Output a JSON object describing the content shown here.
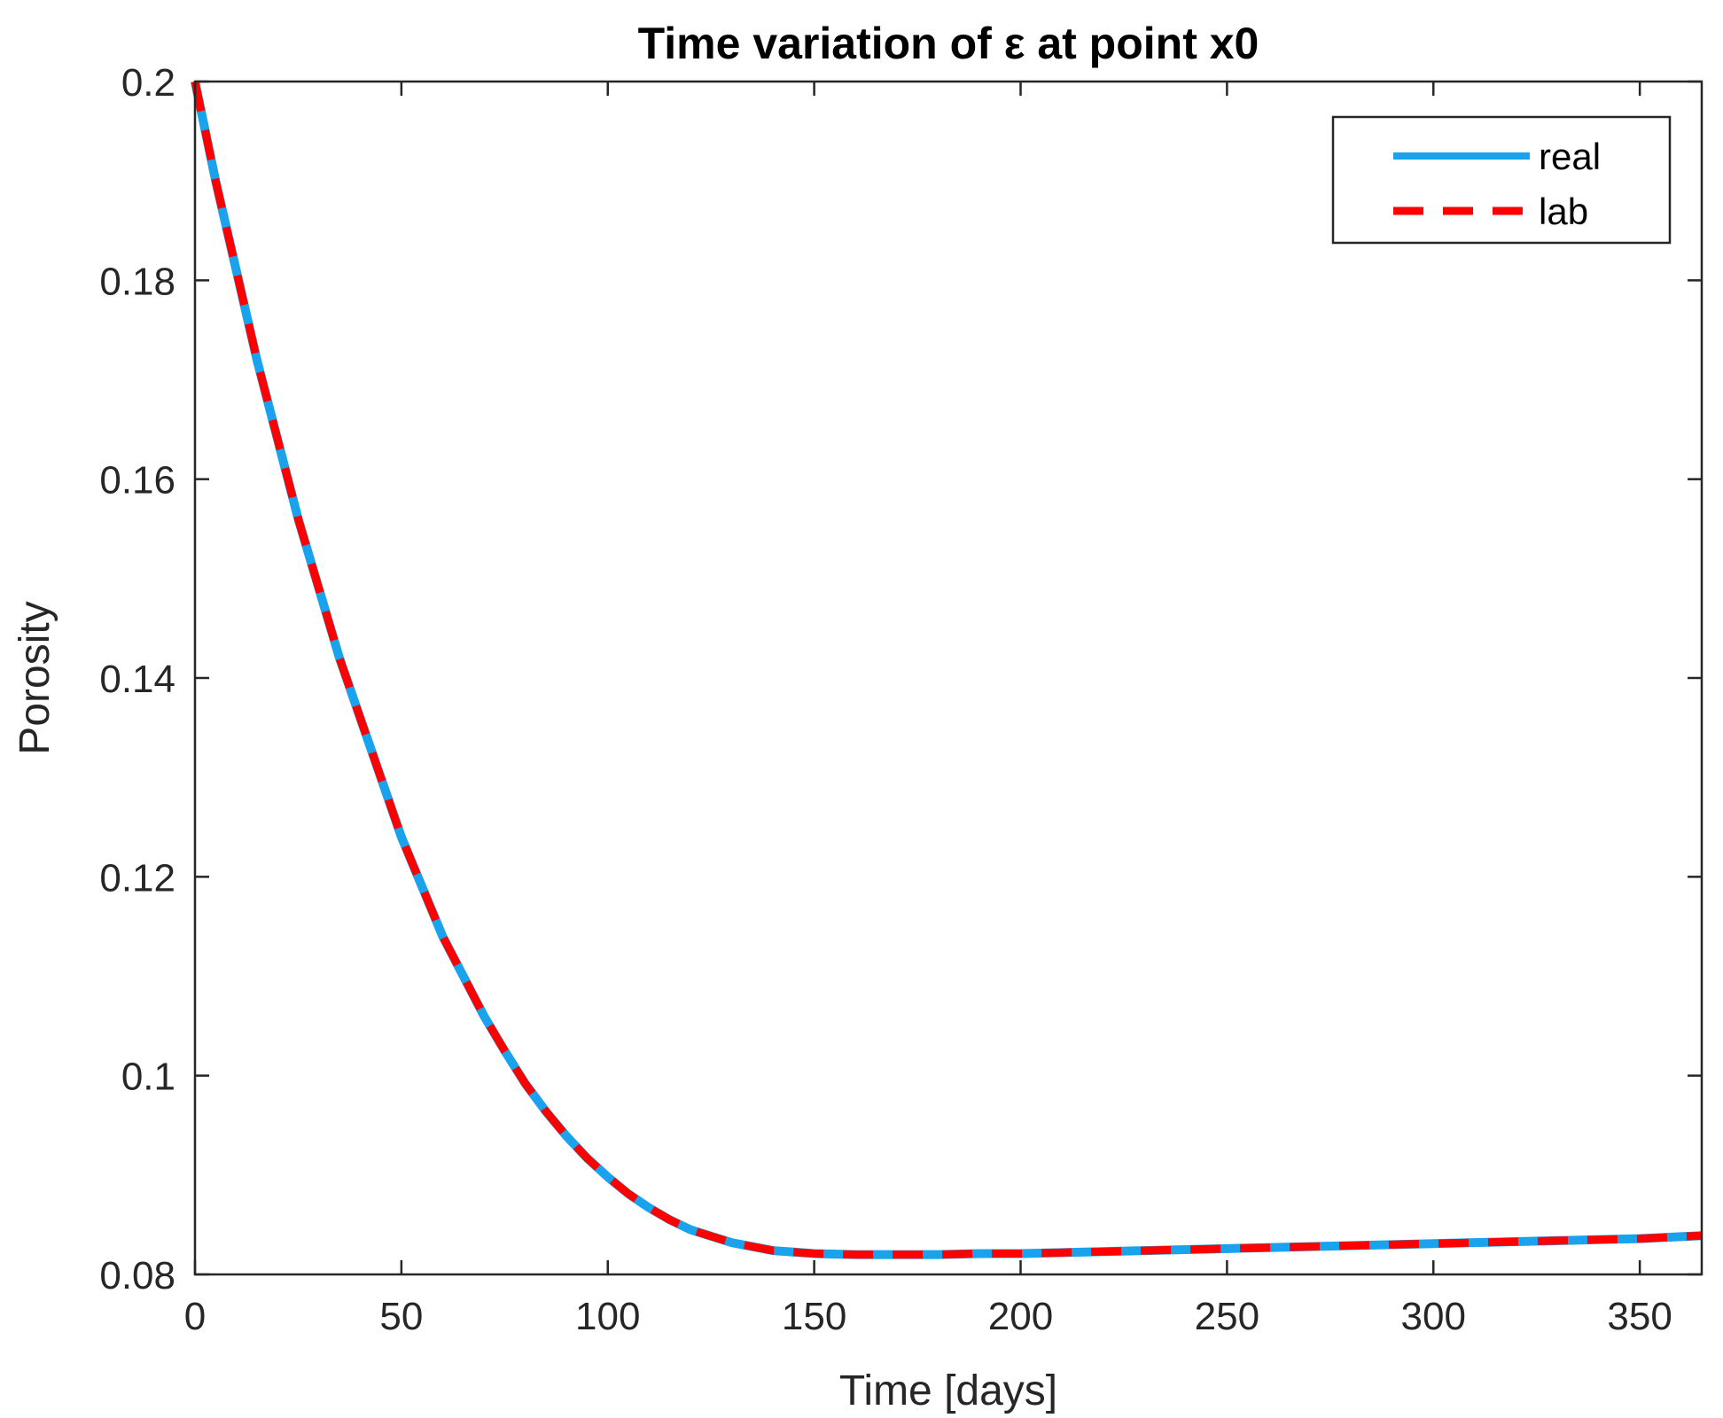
{
  "chart_data": {
    "type": "line",
    "title": "Time variation of ε at point x0",
    "xlabel": "Time [days]",
    "ylabel": "Porosity",
    "xlim": [
      0,
      365
    ],
    "ylim": [
      0.08,
      0.2
    ],
    "xticks": [
      0,
      50,
      100,
      150,
      200,
      250,
      300,
      350
    ],
    "xtick_labels": [
      "0",
      "50",
      "100",
      "150",
      "200",
      "250",
      "300",
      "350"
    ],
    "yticks": [
      0.08,
      0.1,
      0.12,
      0.14,
      0.16,
      0.18,
      0.2
    ],
    "ytick_labels": [
      "0.08",
      "0.1",
      "0.12",
      "0.14",
      "0.16",
      "0.18",
      "0.2"
    ],
    "grid": false,
    "legend_position": "top-right",
    "x": [
      0,
      5,
      10,
      15,
      20,
      25,
      30,
      35,
      40,
      45,
      50,
      55,
      60,
      65,
      70,
      75,
      80,
      85,
      90,
      95,
      100,
      105,
      110,
      115,
      120,
      130,
      140,
      150,
      160,
      170,
      180,
      190,
      200,
      210,
      220,
      230,
      240,
      250,
      260,
      270,
      280,
      290,
      300,
      310,
      320,
      330,
      340,
      350,
      360,
      365
    ],
    "series": [
      {
        "name": "real",
        "color": "#1aa3ec",
        "line_style": "solid",
        "values": [
          0.2,
          0.19,
          0.181,
          0.172,
          0.164,
          0.156,
          0.149,
          0.142,
          0.136,
          0.13,
          0.124,
          0.119,
          0.114,
          0.11,
          0.106,
          0.1025,
          0.0992,
          0.0964,
          0.0939,
          0.0917,
          0.0898,
          0.0881,
          0.0867,
          0.0855,
          0.0845,
          0.0832,
          0.0824,
          0.0821,
          0.082,
          0.082,
          0.082,
          0.0821,
          0.0821,
          0.0822,
          0.0823,
          0.0824,
          0.0825,
          0.0826,
          0.0827,
          0.0828,
          0.0829,
          0.083,
          0.0831,
          0.0832,
          0.0833,
          0.0834,
          0.0835,
          0.0836,
          0.0838,
          0.0839
        ]
      },
      {
        "name": "lab",
        "color": "#ff0000",
        "line_style": "dashed",
        "values": [
          0.2,
          0.19,
          0.181,
          0.172,
          0.164,
          0.156,
          0.149,
          0.142,
          0.136,
          0.13,
          0.124,
          0.119,
          0.114,
          0.11,
          0.106,
          0.1025,
          0.0992,
          0.0964,
          0.0939,
          0.0917,
          0.0898,
          0.0881,
          0.0867,
          0.0855,
          0.0845,
          0.0832,
          0.0824,
          0.0821,
          0.082,
          0.082,
          0.082,
          0.0821,
          0.0821,
          0.0822,
          0.0823,
          0.0824,
          0.0825,
          0.0826,
          0.0827,
          0.0828,
          0.0829,
          0.083,
          0.0831,
          0.0832,
          0.0833,
          0.0834,
          0.0835,
          0.0836,
          0.0838,
          0.0839
        ]
      }
    ]
  }
}
